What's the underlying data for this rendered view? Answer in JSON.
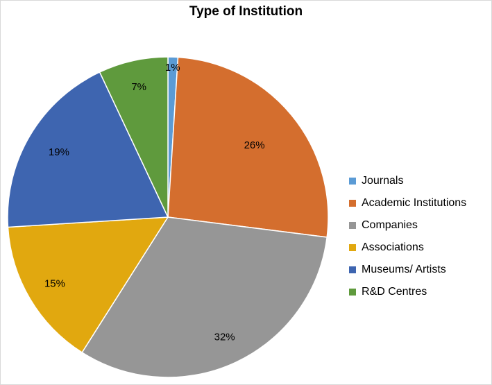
{
  "chart_data": {
    "type": "pie",
    "title": "Type of Institution",
    "categories": [
      "Journals",
      "Academic Institutions",
      "Companies",
      "Associations",
      "Museums/ Artists",
      "R&D Centres"
    ],
    "values": [
      1,
      26,
      32,
      15,
      19,
      7
    ],
    "labels": [
      "1%",
      "26%",
      "32%",
      "15%",
      "19%",
      "7%"
    ],
    "colors": [
      "#5b9bd5",
      "#d46e2e",
      "#969696",
      "#e1a80f",
      "#3e65b0",
      "#5f9a3d"
    ],
    "legend_position": "right",
    "start_angle_deg": 0,
    "direction": "clockwise"
  }
}
